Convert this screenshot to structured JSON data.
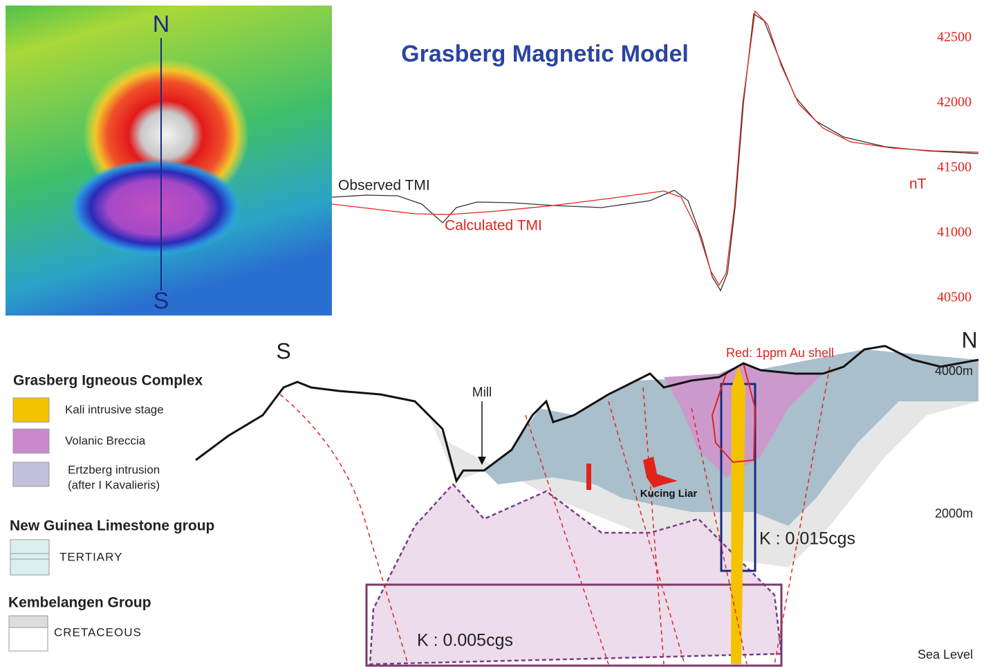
{
  "map": {
    "north": "N",
    "south": "S"
  },
  "profile": {
    "title": "Grasberg Magnetic Model",
    "observed": "Observed TMI",
    "calculated": "Calculated TMI",
    "unit": "nT",
    "ticks": [
      42500,
      42000,
      41500,
      41000,
      40500
    ]
  },
  "section": {
    "south": "S",
    "north": "N",
    "au_shell": "Red: 1ppm Au shell",
    "elev_top": "4000m",
    "elev_mid": "2000m",
    "sea_level": "Sea Level",
    "mill": "Mill",
    "kucing_liar": "Kucing Liar",
    "k_high": "K : 0.015cgs",
    "k_low": "K : 0.005cgs"
  },
  "legend": {
    "igneous": {
      "title": "Grasberg Igneous Complex",
      "kali": "Kali intrusive stage",
      "breccia": "Volanic Breccia",
      "ertzberg": "Ertzberg intrusion",
      "ertzberg_note": "(after I Kavalieris)"
    },
    "limestone": {
      "title": "New Guinea Limestone group",
      "tertiary": "TERTIARY"
    },
    "kembelangen": {
      "title": "Kembelangen Group",
      "cretaceous": "CRETACEOUS"
    }
  }
}
